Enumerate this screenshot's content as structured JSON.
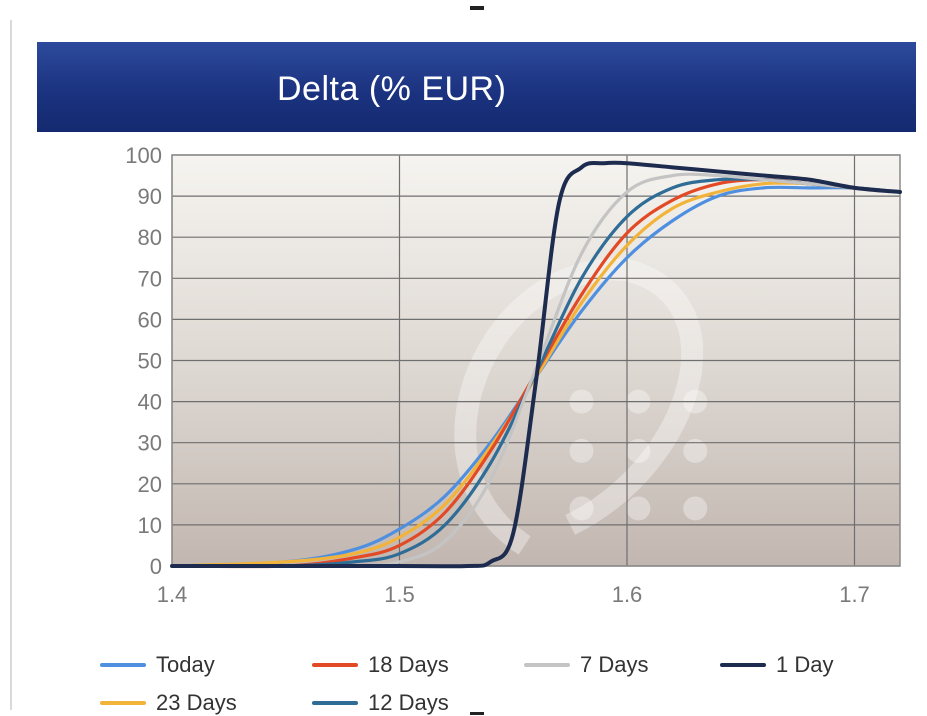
{
  "chart_data": {
    "type": "line",
    "title": "Delta (% EUR)",
    "xlabel": "",
    "ylabel": "",
    "xlim": [
      1.4,
      1.72
    ],
    "ylim": [
      0,
      100
    ],
    "x_ticks": [
      "1.4",
      "1.5",
      "1.6",
      "1.7"
    ],
    "y_ticks": [
      "0",
      "10",
      "20",
      "30",
      "40",
      "50",
      "60",
      "70",
      "80",
      "90",
      "100"
    ],
    "grid": true,
    "legend_position": "bottom",
    "series": [
      {
        "name": "Today",
        "color": "#4f8fe0",
        "x": [
          1.4,
          1.45,
          1.48,
          1.5,
          1.52,
          1.54,
          1.56,
          1.58,
          1.6,
          1.62,
          1.64,
          1.66,
          1.68,
          1.7,
          1.72
        ],
        "y": [
          0,
          1,
          4,
          9,
          17,
          30,
          46,
          62,
          75,
          84,
          90,
          92,
          92,
          92,
          91
        ]
      },
      {
        "name": "18 Days",
        "color": "#e24a25",
        "x": [
          1.4,
          1.45,
          1.48,
          1.5,
          1.52,
          1.54,
          1.56,
          1.58,
          1.6,
          1.62,
          1.64,
          1.66,
          1.68,
          1.7,
          1.72
        ],
        "y": [
          0,
          0,
          2,
          5,
          13,
          28,
          47,
          66,
          81,
          89,
          93,
          94,
          93,
          92,
          91
        ]
      },
      {
        "name": "7 Days",
        "color": "#c4c4c4",
        "x": [
          1.4,
          1.45,
          1.48,
          1.5,
          1.52,
          1.54,
          1.56,
          1.58,
          1.6,
          1.62,
          1.64,
          1.66,
          1.68,
          1.7,
          1.72
        ],
        "y": [
          0,
          0,
          0,
          1,
          6,
          21,
          48,
          76,
          91,
          95,
          95,
          94,
          93,
          92,
          91
        ]
      },
      {
        "name": "1 Day",
        "color": "#1d2b4f",
        "x": [
          1.4,
          1.5,
          1.53,
          1.54,
          1.55,
          1.56,
          1.57,
          1.58,
          1.59,
          1.6,
          1.62,
          1.64,
          1.66,
          1.68,
          1.7,
          1.72
        ],
        "y": [
          0,
          0,
          0,
          1,
          8,
          45,
          88,
          97,
          98,
          98,
          97,
          96,
          95,
          94,
          92,
          91
        ]
      },
      {
        "name": "23 Days",
        "color": "#f2b33a",
        "x": [
          1.4,
          1.45,
          1.48,
          1.5,
          1.52,
          1.54,
          1.56,
          1.58,
          1.6,
          1.62,
          1.64,
          1.66,
          1.68,
          1.7,
          1.72
        ],
        "y": [
          0,
          1,
          3,
          7,
          15,
          29,
          46,
          64,
          78,
          87,
          91,
          93,
          93,
          92,
          91
        ]
      },
      {
        "name": "12 Days",
        "color": "#2f6c96",
        "x": [
          1.4,
          1.45,
          1.48,
          1.5,
          1.52,
          1.54,
          1.56,
          1.58,
          1.6,
          1.62,
          1.64,
          1.66,
          1.68,
          1.7,
          1.72
        ],
        "y": [
          0,
          0,
          1,
          3,
          10,
          25,
          47,
          70,
          85,
          92,
          94,
          94,
          93,
          92,
          91
        ]
      }
    ]
  }
}
